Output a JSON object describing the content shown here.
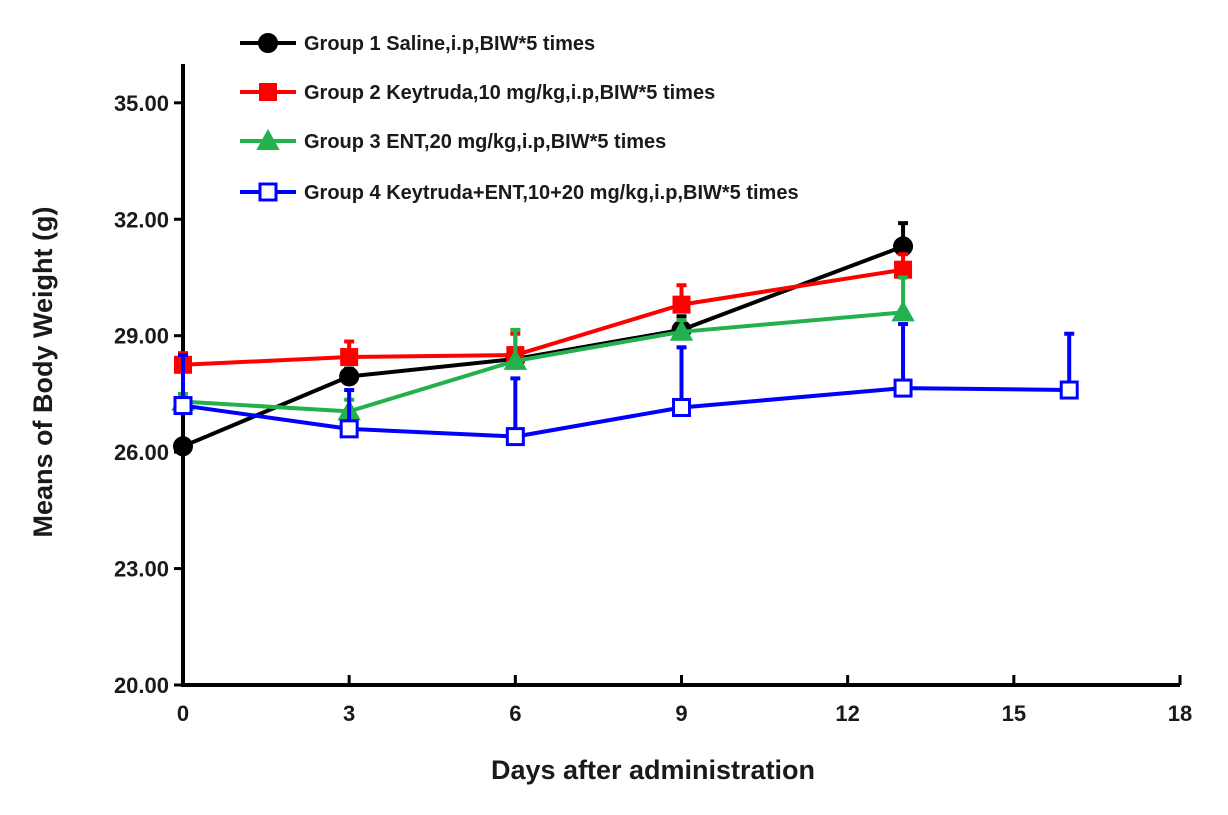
{
  "chart_data": {
    "type": "line",
    "title": "",
    "xlabel": "Days after administration",
    "ylabel": "Means of Body Weight (g)",
    "xlim": [
      0,
      18
    ],
    "ylim": [
      20,
      36
    ],
    "x_ticks": [
      0,
      3,
      6,
      9,
      12,
      15,
      18
    ],
    "x_tick_labels": [
      "0",
      "3",
      "6",
      "9",
      "12",
      "15",
      "18"
    ],
    "y_ticks": [
      20,
      23,
      26,
      29,
      32,
      35
    ],
    "y_tick_labels": [
      "20.00",
      "23.00",
      "26.00",
      "29.00",
      "32.00",
      "35.00"
    ],
    "grid": false,
    "legend_position": "top",
    "series": [
      {
        "name": "Group 1 Saline,i.p,BIW*5 times",
        "color": "#000000",
        "marker": "circle",
        "filled": true,
        "x": [
          0,
          3,
          6,
          9,
          13
        ],
        "values": [
          26.15,
          27.95,
          28.4,
          29.15,
          31.3
        ],
        "errors": [
          0.1,
          0.2,
          0.25,
          0.35,
          0.6
        ]
      },
      {
        "name": "Group 2 Keytruda,10 mg/kg,i.p,BIW*5 times",
        "color": "#ff0000",
        "marker": "square",
        "filled": true,
        "x": [
          0,
          3,
          6,
          9,
          13
        ],
        "values": [
          28.25,
          28.45,
          28.5,
          29.8,
          30.7
        ],
        "errors": [
          0.3,
          0.4,
          0.55,
          0.5,
          0.4
        ]
      },
      {
        "name": "Group 3 ENT,20 mg/kg,i.p,BIW*5 times",
        "color": "#22b14c",
        "marker": "triangle",
        "filled": true,
        "x": [
          0,
          3,
          6,
          9,
          13
        ],
        "values": [
          27.3,
          27.05,
          28.35,
          29.1,
          29.6
        ],
        "errors": [
          0.2,
          0.3,
          0.8,
          0.3,
          0.9
        ]
      },
      {
        "name": "Group 4  Keytruda+ENT,10+20 mg/kg,i.p,BIW*5 times",
        "color": "#0000ff",
        "marker": "square",
        "filled": false,
        "x": [
          0,
          3,
          6,
          9,
          13,
          16
        ],
        "values": [
          27.2,
          26.6,
          26.4,
          27.15,
          27.65,
          27.6
        ],
        "errors": [
          1.3,
          1.0,
          1.5,
          1.55,
          1.65,
          1.45
        ]
      }
    ]
  }
}
